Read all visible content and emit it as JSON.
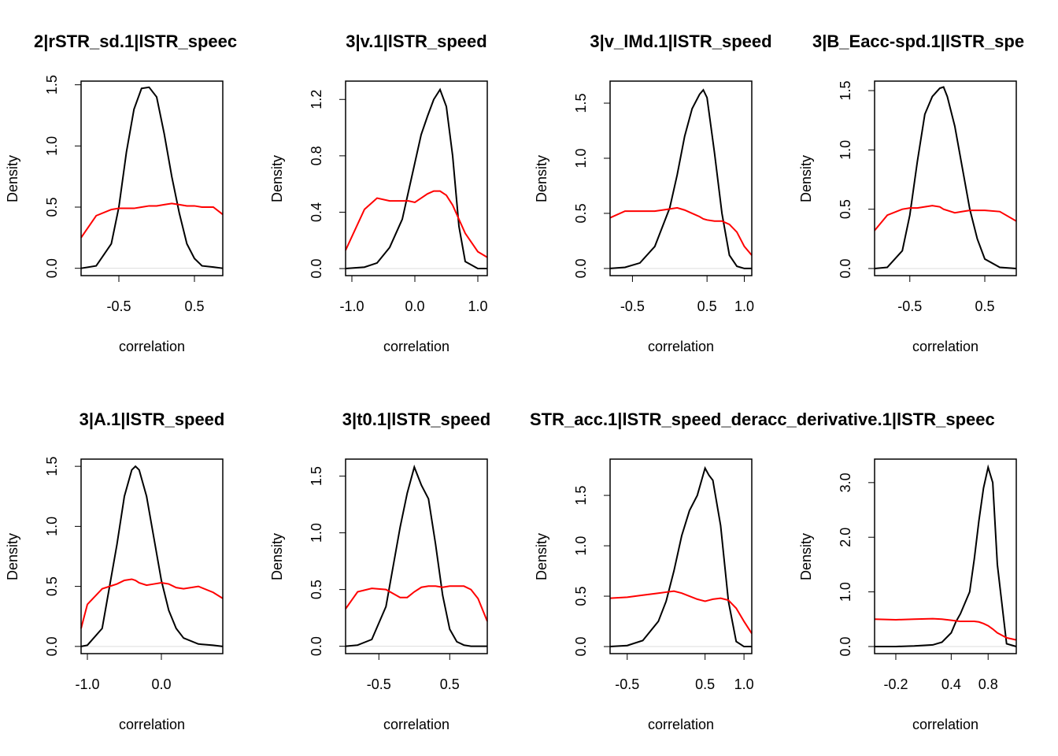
{
  "chart_data": [
    {
      "type": "line",
      "title": "2|rSTR_sd.1|lSTR_speec",
      "xlabel": "correlation",
      "ylabel": "Density",
      "x": [
        -1.0,
        -0.8,
        -0.6,
        -0.5,
        -0.4,
        -0.3,
        -0.2,
        -0.1,
        0,
        0.1,
        0.2,
        0.3,
        0.4,
        0.5,
        0.6,
        0.75,
        0.875
      ],
      "series": [
        {
          "color": "#000000",
          "values": [
            0,
            0.02,
            0.2,
            0.5,
            0.95,
            1.3,
            1.47,
            1.48,
            1.4,
            1.1,
            0.75,
            0.45,
            0.2,
            0.08,
            0.02,
            0.01,
            0
          ]
        },
        {
          "color": "#ff0000",
          "values": [
            0.25,
            0.43,
            0.48,
            0.49,
            0.49,
            0.49,
            0.5,
            0.51,
            0.51,
            0.52,
            0.53,
            0.52,
            0.51,
            0.51,
            0.5,
            0.5,
            0.44
          ]
        }
      ],
      "xlim": [
        -1.0,
        0.875
      ],
      "ylim": [
        -0.06,
        1.53
      ],
      "xticks": [
        -0.5,
        0.5
      ],
      "yticks": [
        {
          "value": 0,
          "label": "0.0"
        },
        0.5,
        {
          "value": 1,
          "label": "1.0"
        },
        1.5
      ]
    },
    {
      "type": "line",
      "title": "3|v.1|lSTR_speed",
      "xlabel": "correlation",
      "ylabel": "Density",
      "x": [
        -1.1,
        -0.8,
        -0.6,
        -0.4,
        -0.2,
        -0.1,
        0,
        0.1,
        0.2,
        0.3,
        0.4,
        0.5,
        0.6,
        0.7,
        0.8,
        1.0,
        1.15
      ],
      "series": [
        {
          "color": "#000000",
          "values": [
            0,
            0.01,
            0.04,
            0.15,
            0.35,
            0.55,
            0.75,
            0.95,
            1.08,
            1.2,
            1.27,
            1.15,
            0.8,
            0.3,
            0.05,
            0,
            0
          ]
        },
        {
          "color": "#ff0000",
          "values": [
            0.13,
            0.42,
            0.5,
            0.48,
            0.48,
            0.48,
            0.47,
            0.5,
            0.53,
            0.55,
            0.55,
            0.52,
            0.45,
            0.35,
            0.25,
            0.12,
            0.08
          ]
        }
      ],
      "xlim": [
        -1.1,
        1.15
      ],
      "ylim": [
        -0.05,
        1.33
      ],
      "xticks": [
        {
          "value": -1,
          "label": "-1.0"
        },
        {
          "value": 0,
          "label": "0.0"
        },
        {
          "value": 1,
          "label": "1.0"
        }
      ],
      "yticks": [
        {
          "value": 0,
          "label": "0.0"
        },
        0.4,
        0.8,
        1.2
      ]
    },
    {
      "type": "line",
      "title": "3|v_lMd.1|lSTR_speed",
      "xlabel": "correlation",
      "ylabel": "Density",
      "x": [
        -0.8,
        -0.6,
        -0.4,
        -0.2,
        0,
        0.1,
        0.2,
        0.3,
        0.4,
        0.45,
        0.5,
        0.6,
        0.7,
        0.8,
        0.9,
        1.0,
        1.1
      ],
      "series": [
        {
          "color": "#000000",
          "values": [
            0,
            0.01,
            0.05,
            0.2,
            0.55,
            0.85,
            1.2,
            1.45,
            1.58,
            1.62,
            1.55,
            1.05,
            0.5,
            0.12,
            0.02,
            0,
            0
          ]
        },
        {
          "color": "#ff0000",
          "values": [
            0.46,
            0.52,
            0.52,
            0.52,
            0.54,
            0.55,
            0.53,
            0.5,
            0.47,
            0.45,
            0.44,
            0.43,
            0.43,
            0.4,
            0.33,
            0.2,
            0.12
          ]
        }
      ],
      "xlim": [
        -0.8,
        1.1
      ],
      "ylim": [
        -0.065,
        1.7
      ],
      "xticks": [
        -0.5,
        0.5,
        {
          "value": 1,
          "label": "1.0"
        }
      ],
      "yticks": [
        {
          "value": 0,
          "label": "0.0"
        },
        0.5,
        {
          "value": 1,
          "label": "1.0"
        },
        1.5
      ]
    },
    {
      "type": "line",
      "title": "3|B_Eacc-spd.1|lSTR_spe",
      "xlabel": "correlation",
      "ylabel": "Density",
      "x": [
        -0.97,
        -0.8,
        -0.6,
        -0.5,
        -0.4,
        -0.3,
        -0.2,
        -0.1,
        -0.05,
        0,
        0.1,
        0.2,
        0.3,
        0.4,
        0.5,
        0.7,
        0.92
      ],
      "series": [
        {
          "color": "#000000",
          "values": [
            0,
            0.01,
            0.15,
            0.45,
            0.9,
            1.3,
            1.45,
            1.52,
            1.53,
            1.45,
            1.2,
            0.85,
            0.5,
            0.25,
            0.08,
            0.01,
            0
          ]
        },
        {
          "color": "#ff0000",
          "values": [
            0.32,
            0.45,
            0.5,
            0.51,
            0.51,
            0.52,
            0.53,
            0.52,
            0.5,
            0.49,
            0.47,
            0.48,
            0.49,
            0.49,
            0.49,
            0.48,
            0.4
          ]
        }
      ],
      "xlim": [
        -0.97,
        0.92
      ],
      "ylim": [
        -0.06,
        1.58
      ],
      "xticks": [
        -0.5,
        0.5
      ],
      "yticks": [
        {
          "value": 0,
          "label": "0.0"
        },
        0.5,
        {
          "value": 1,
          "label": "1.0"
        },
        1.5
      ]
    },
    {
      "type": "line",
      "title": "3|A.1|lSTR_speed",
      "xlabel": "correlation",
      "ylabel": "Density",
      "x": [
        -1.085,
        -1.0,
        -0.8,
        -0.6,
        -0.5,
        -0.4,
        -0.35,
        -0.3,
        -0.2,
        -0.1,
        0,
        0.1,
        0.2,
        0.3,
        0.5,
        0.7,
        0.83
      ],
      "series": [
        {
          "color": "#000000",
          "values": [
            0,
            0.01,
            0.15,
            0.85,
            1.25,
            1.47,
            1.5,
            1.47,
            1.25,
            0.9,
            0.55,
            0.3,
            0.15,
            0.07,
            0.02,
            0.01,
            0
          ]
        },
        {
          "color": "#ff0000",
          "values": [
            0.15,
            0.35,
            0.48,
            0.52,
            0.55,
            0.56,
            0.55,
            0.53,
            0.51,
            0.52,
            0.53,
            0.52,
            0.49,
            0.48,
            0.5,
            0.45,
            0.4
          ]
        }
      ],
      "xlim": [
        -1.085,
        0.83
      ],
      "ylim": [
        -0.06,
        1.56
      ],
      "xticks": [
        {
          "value": -1,
          "label": "-1.0"
        },
        {
          "value": 0,
          "label": "0.0"
        }
      ],
      "yticks": [
        {
          "value": 0,
          "label": "0.0"
        },
        0.5,
        {
          "value": 1,
          "label": "1.0"
        },
        1.5
      ]
    },
    {
      "type": "line",
      "title": "3|t0.1|lSTR_speed",
      "xlabel": "correlation",
      "ylabel": "Density",
      "x": [
        -0.97,
        -0.8,
        -0.6,
        -0.4,
        -0.2,
        -0.1,
        0,
        0.1,
        0.2,
        0.3,
        0.4,
        0.5,
        0.6,
        0.7,
        0.8,
        0.9,
        1.03
      ],
      "series": [
        {
          "color": "#000000",
          "values": [
            0,
            0.01,
            0.06,
            0.35,
            1.05,
            1.35,
            1.58,
            1.42,
            1.3,
            0.9,
            0.45,
            0.15,
            0.04,
            0.01,
            0,
            0,
            0
          ]
        },
        {
          "color": "#ff0000",
          "values": [
            0.33,
            0.48,
            0.51,
            0.5,
            0.43,
            0.43,
            0.48,
            0.52,
            0.53,
            0.53,
            0.52,
            0.53,
            0.53,
            0.53,
            0.5,
            0.42,
            0.22
          ]
        }
      ],
      "xlim": [
        -0.97,
        1.03
      ],
      "ylim": [
        -0.065,
        1.65
      ],
      "xticks": [
        -0.5,
        0.5
      ],
      "yticks": [
        {
          "value": 0,
          "label": "0.0"
        },
        0.5,
        {
          "value": 1,
          "label": "1.0"
        },
        1.5
      ]
    },
    {
      "type": "line",
      "title": "STR_acc.1|lSTR_speed_deracc_derivative.1|lSTR_speec",
      "xlabel": "correlation",
      "ylabel": "Density",
      "x": [
        -0.72,
        -0.5,
        -0.3,
        -0.1,
        0,
        0.1,
        0.2,
        0.3,
        0.4,
        0.5,
        0.55,
        0.6,
        0.7,
        0.8,
        0.9,
        1.0,
        1.1
      ],
      "series": [
        {
          "color": "#000000",
          "values": [
            0,
            0.01,
            0.06,
            0.25,
            0.45,
            0.75,
            1.1,
            1.35,
            1.5,
            1.77,
            1.7,
            1.65,
            1.2,
            0.45,
            0.05,
            0,
            0
          ]
        },
        {
          "color": "#ff0000",
          "values": [
            0.48,
            0.49,
            0.51,
            0.53,
            0.54,
            0.55,
            0.53,
            0.5,
            0.47,
            0.45,
            0.46,
            0.47,
            0.48,
            0.46,
            0.38,
            0.25,
            0.13
          ]
        }
      ],
      "xlim": [
        -0.72,
        1.1
      ],
      "ylim": [
        -0.07,
        1.86
      ],
      "xticks": [
        -0.5,
        0.5,
        {
          "value": 1,
          "label": "1.0"
        }
      ],
      "yticks": [
        {
          "value": 0,
          "label": "0.0"
        },
        0.5,
        {
          "value": 1,
          "label": "1.0"
        },
        1.5
      ]
    },
    {
      "type": "line",
      "xlabel": "correlation",
      "ylabel": "Density",
      "x": [
        -0.43,
        -0.2,
        0,
        0.2,
        0.3,
        0.4,
        0.45,
        0.5,
        0.6,
        0.65,
        0.7,
        0.75,
        0.8,
        0.85,
        0.9,
        1.0,
        1.105
      ],
      "series": [
        {
          "color": "#000000",
          "values": [
            0,
            0,
            0.01,
            0.03,
            0.08,
            0.25,
            0.45,
            0.6,
            1.0,
            1.6,
            2.3,
            2.9,
            3.28,
            3.0,
            1.5,
            0.05,
            0
          ]
        },
        {
          "color": "#ff0000",
          "values": [
            0.5,
            0.49,
            0.5,
            0.51,
            0.5,
            0.48,
            0.47,
            0.46,
            0.46,
            0.46,
            0.45,
            0.42,
            0.38,
            0.32,
            0.25,
            0.16,
            0.12
          ]
        }
      ],
      "xlim": [
        -0.43,
        1.105
      ],
      "ylim": [
        -0.13,
        3.43
      ],
      "xticks": [
        -0.2,
        0.4,
        0.8
      ],
      "yticks": [
        {
          "value": 0,
          "label": "0.0"
        },
        {
          "value": 1,
          "label": "1.0"
        },
        {
          "value": 2,
          "label": "2.0"
        },
        {
          "value": 3,
          "label": "3.0"
        }
      ]
    }
  ]
}
